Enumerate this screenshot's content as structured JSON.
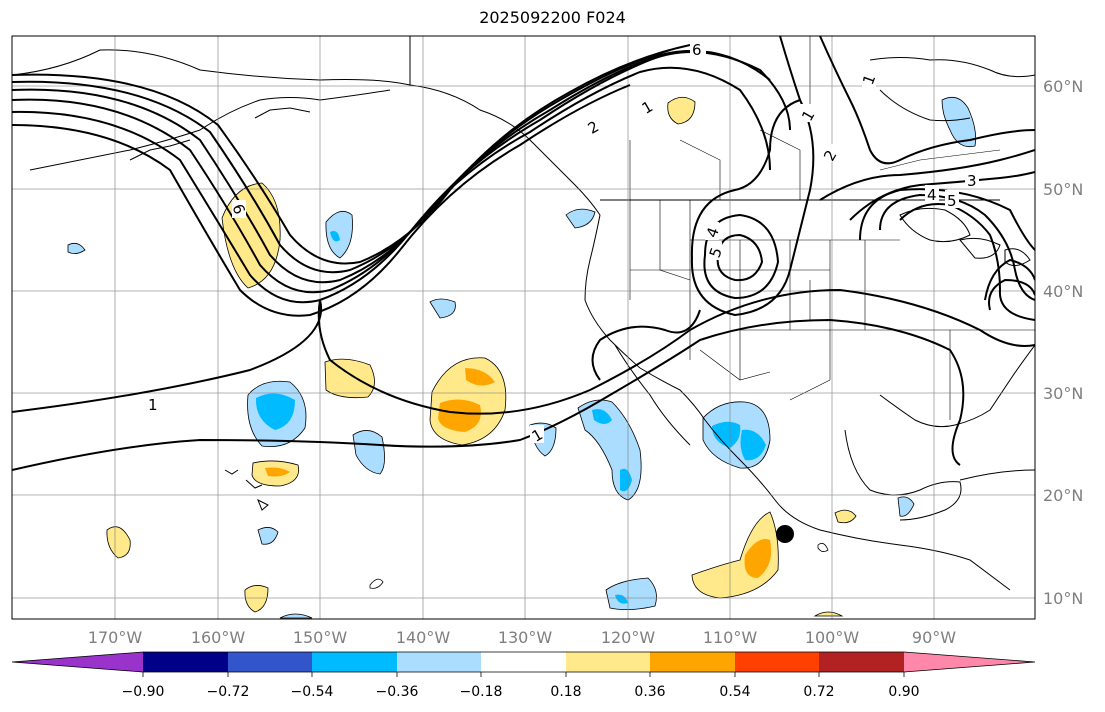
{
  "title": "2025092200 F024",
  "lon_labels": [
    "170°W",
    "160°W",
    "150°W",
    "140°W",
    "130°W",
    "120°W",
    "110°W",
    "100°W",
    "90°W"
  ],
  "lat_labels": [
    "60°N",
    "50°N",
    "40°N",
    "30°N",
    "20°N",
    "10°N"
  ],
  "colorbar": {
    "ticks": [
      "−0.90",
      "−0.72",
      "−0.54",
      "−0.36",
      "−0.18",
      "0.18",
      "0.36",
      "0.54",
      "0.72",
      "0.90"
    ],
    "colors": [
      "#9933cc",
      "#000088",
      "#3355cc",
      "#00bbff",
      "#aaddff",
      "#ffffff",
      "#ffe98a",
      "#ffa500",
      "#ff4000",
      "#b22222",
      "#ff88aa"
    ]
  },
  "contour_labels": [
    "6",
    "1",
    "2",
    "1",
    "1",
    "1",
    "4",
    "5",
    "3",
    "4",
    "5",
    "6",
    "2",
    "1"
  ],
  "marker": "storm-center"
}
